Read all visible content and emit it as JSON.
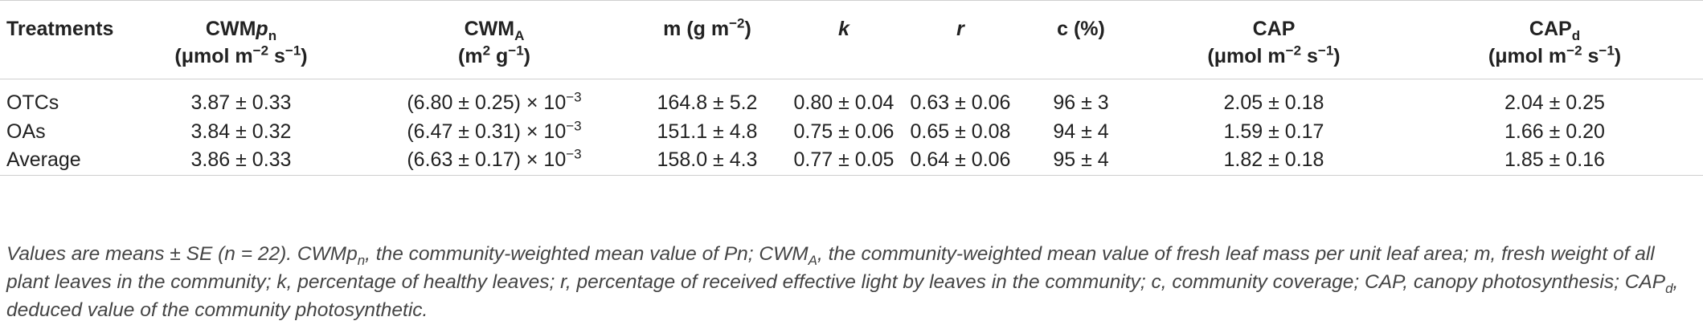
{
  "headers": {
    "treatments": "Treatments",
    "cwmpn_main": "CWM",
    "cwmpn_sym": "p",
    "cwmpn_sub": "n",
    "cwmpn_unit_a": "(μmol m",
    "cwmpn_unit_exp1": "−2",
    "cwmpn_unit_b": " s",
    "cwmpn_unit_exp2": "−1",
    "cwmpn_unit_c": ")",
    "cwma_main": "CWM",
    "cwma_sub": "A",
    "cwma_unit_a": "(m",
    "cwma_unit_exp1": "2",
    "cwma_unit_b": " g",
    "cwma_unit_exp2": "−1",
    "cwma_unit_c": ")",
    "m_a": "m (g m",
    "m_exp": "−2",
    "m_b": ")",
    "k": "k",
    "r": "r",
    "c": "c (%)",
    "cap": "CAP",
    "cap_unit_a": "(μmol m",
    "cap_unit_exp1": "−2",
    "cap_unit_b": " s",
    "cap_unit_exp2": "−1",
    "cap_unit_c": ")",
    "capd_main": "CAP",
    "capd_sub": "d",
    "capd_unit_a": "(μmol m",
    "capd_unit_exp1": "−2",
    "capd_unit_b": " s",
    "capd_unit_exp2": "−1",
    "capd_unit_c": ")"
  },
  "rows": [
    {
      "treatment": "OTCs",
      "cwmpn": "3.87 ± 0.33",
      "cwma_base": "(6.80 ± 0.25) × 10",
      "cwma_exp": "−3",
      "m": "164.8 ± 5.2",
      "k": "0.80 ± 0.04",
      "r": "0.63 ± 0.06",
      "c": "96 ± 3",
      "cap": "2.05 ± 0.18",
      "capd": "2.04 ± 0.25"
    },
    {
      "treatment": "OAs",
      "cwmpn": "3.84 ± 0.32",
      "cwma_base": "(6.47 ± 0.31) × 10",
      "cwma_exp": "−3",
      "m": "151.1 ± 4.8",
      "k": "0.75 ± 0.06",
      "r": "0.65 ± 0.08",
      "c": "94 ± 4",
      "cap": "1.59 ± 0.17",
      "capd": "1.66 ± 0.20"
    },
    {
      "treatment": "Average",
      "cwmpn": "3.86 ± 0.33",
      "cwma_base": "(6.63 ± 0.17) × 10",
      "cwma_exp": "−3",
      "m": "158.0 ± 4.3",
      "k": "0.77 ± 0.05",
      "r": "0.64 ± 0.06",
      "c": "95 ± 4",
      "cap": "1.82 ± 0.18",
      "capd": "1.85 ± 0.16"
    }
  ],
  "footnote": {
    "p1": "Values are means ± SE (n = 22). CWMp",
    "p1_sub": "n",
    "p2": ", the community-weighted mean value of Pn; CWM",
    "p2_sub": "A",
    "p3": ", the community-weighted mean value of fresh leaf mass per unit leaf area; m, fresh weight of all plant leaves in the community; k, percentage of healthy leaves; r, percentage of received effective light by leaves in the community; c, community coverage; CAP, canopy photosynthesis; CAP",
    "p3_sub": "d",
    "p4": ", deduced value of the community photosynthetic."
  }
}
